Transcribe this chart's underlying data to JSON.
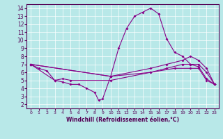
{
  "xlabel": "Windchill (Refroidissement éolien,°C)",
  "bg_color": "#b8e8e8",
  "line_color": "#880088",
  "grid_color": "#ffffff",
  "xlim": [
    -0.5,
    23.5
  ],
  "ylim": [
    1.5,
    14.5
  ],
  "xticks": [
    0,
    1,
    2,
    3,
    4,
    5,
    6,
    7,
    8,
    9,
    10,
    11,
    12,
    13,
    14,
    15,
    16,
    17,
    18,
    19,
    20,
    21,
    22,
    23
  ],
  "yticks": [
    2,
    3,
    4,
    5,
    6,
    7,
    8,
    9,
    10,
    11,
    12,
    13,
    14
  ],
  "lines": [
    {
      "x": [
        0,
        1,
        2,
        3,
        4,
        5,
        6,
        7,
        8,
        8.5,
        9,
        10,
        11,
        12,
        13,
        14,
        15,
        16,
        17,
        18,
        19,
        20,
        21,
        22,
        23
      ],
      "y": [
        7,
        6.5,
        6.2,
        5.0,
        4.8,
        4.5,
        4.5,
        4.0,
        3.5,
        2.5,
        2.7,
        5.5,
        9.0,
        11.5,
        13.0,
        13.5,
        14.0,
        13.3,
        10.2,
        8.5,
        8.0,
        7.0,
        6.7,
        5.2,
        4.5
      ]
    },
    {
      "x": [
        0,
        10,
        15,
        17,
        19,
        20,
        21,
        22,
        23
      ],
      "y": [
        7,
        5.5,
        6.5,
        7.0,
        7.5,
        8.0,
        7.5,
        6.5,
        4.5
      ]
    },
    {
      "x": [
        0,
        10,
        15,
        17,
        19,
        20,
        21,
        22,
        23
      ],
      "y": [
        7,
        5.5,
        6.0,
        6.5,
        7.0,
        7.0,
        7.0,
        6.0,
        4.5
      ]
    },
    {
      "x": [
        0,
        3,
        4,
        5,
        10,
        15,
        18,
        20,
        21,
        22,
        23
      ],
      "y": [
        7,
        5.0,
        5.2,
        5.0,
        5.0,
        6.0,
        6.5,
        6.5,
        6.5,
        5.0,
        4.5
      ]
    }
  ]
}
